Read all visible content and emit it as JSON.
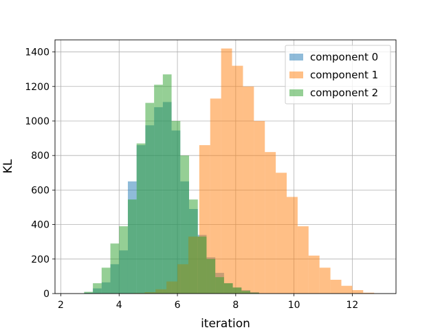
{
  "chart_data": {
    "type": "bar",
    "title": "",
    "xlabel": "iteration",
    "ylabel": "KL",
    "xlim": [
      1.8,
      13.5
    ],
    "ylim": [
      0,
      1470
    ],
    "xticks": [
      2,
      4,
      6,
      8,
      10,
      12
    ],
    "yticks": [
      0,
      200,
      400,
      600,
      800,
      1000,
      1200,
      1400
    ],
    "grid": true,
    "legend_position": "top-right",
    "series": [
      {
        "name": "component 0",
        "color": "#1f77b4",
        "opacity": 0.5,
        "bin_edges": [
          2.8,
          3.1,
          3.4,
          3.7,
          4.0,
          4.3,
          4.6,
          4.9,
          5.2,
          5.5,
          5.8,
          6.1,
          6.4,
          6.7,
          7.0,
          7.3,
          7.6,
          7.9,
          8.2,
          8.5,
          8.8
        ],
        "counts": [
          5,
          30,
          65,
          170,
          250,
          650,
          860,
          975,
          1080,
          1110,
          945,
          650,
          490,
          340,
          210,
          120,
          60,
          35,
          20,
          8
        ]
      },
      {
        "name": "component 1",
        "color": "#ff7f0e",
        "opacity": 0.5,
        "bin_edges": [
          4.5,
          4.875,
          5.25,
          5.625,
          6.0,
          6.375,
          6.75,
          7.125,
          7.5,
          7.875,
          8.25,
          8.625,
          9.0,
          9.375,
          9.75,
          10.125,
          10.5,
          10.875,
          11.25,
          11.625,
          12.0,
          12.375,
          12.75
        ],
        "counts": [
          3,
          8,
          25,
          70,
          170,
          330,
          860,
          1130,
          1420,
          1320,
          1200,
          1000,
          820,
          700,
          560,
          390,
          220,
          150,
          80,
          45,
          20,
          5
        ]
      },
      {
        "name": "component 2",
        "color": "#2ca02c",
        "opacity": 0.5,
        "bin_edges": [
          2.8,
          3.1,
          3.4,
          3.7,
          4.0,
          4.3,
          4.6,
          4.9,
          5.2,
          5.5,
          5.8,
          6.1,
          6.4,
          6.7,
          7.0,
          7.3,
          7.6,
          7.9,
          8.2,
          8.5,
          8.8
        ],
        "counts": [
          10,
          60,
          150,
          290,
          390,
          545,
          870,
          1105,
          1210,
          1270,
          1000,
          800,
          545,
          330,
          200,
          95,
          60,
          35,
          15,
          5
        ]
      }
    ]
  }
}
